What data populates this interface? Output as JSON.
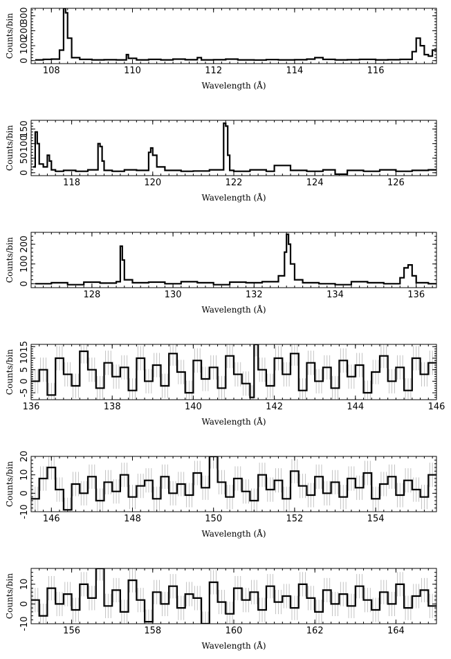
{
  "chart_data": [
    {
      "type": "line",
      "step": true,
      "xlabel": "Wavelength (Å)",
      "ylabel": "Counts/bin",
      "xlim": [
        107.5,
        117.5
      ],
      "ylim": [
        -20,
        350
      ],
      "xticks": [
        108,
        110,
        112,
        114,
        116
      ],
      "yticks": [
        0,
        100,
        200,
        300
      ],
      "x": [
        107.6,
        107.8,
        108.0,
        108.2,
        108.3,
        108.35,
        108.4,
        108.5,
        108.7,
        109.0,
        109.3,
        109.6,
        109.85,
        109.9,
        110.1,
        110.4,
        110.7,
        111.0,
        111.3,
        111.6,
        111.7,
        112.0,
        112.3,
        112.6,
        113.0,
        113.3,
        113.6,
        114.0,
        114.3,
        114.5,
        114.7,
        115.0,
        115.3,
        115.6,
        116.0,
        116.3,
        116.6,
        116.9,
        117.0,
        117.1,
        117.2,
        117.3,
        117.4
      ],
      "y": [
        5,
        8,
        10,
        70,
        350,
        320,
        150,
        20,
        8,
        5,
        6,
        5,
        40,
        15,
        5,
        8,
        5,
        10,
        6,
        20,
        5,
        6,
        10,
        5,
        4,
        7,
        5,
        6,
        10,
        20,
        8,
        5,
        6,
        8,
        5,
        6,
        8,
        60,
        150,
        100,
        40,
        30,
        70
      ],
      "error_bars": false
    },
    {
      "type": "line",
      "step": true,
      "xlabel": "Wavelength (Å)",
      "ylabel": "Counts/bin",
      "xlim": [
        117.0,
        127.0
      ],
      "ylim": [
        -10,
        180
      ],
      "xticks": [
        118,
        120,
        122,
        124,
        126
      ],
      "yticks": [
        0,
        50,
        100,
        150
      ],
      "x": [
        117.05,
        117.1,
        117.15,
        117.2,
        117.3,
        117.4,
        117.45,
        117.5,
        117.6,
        117.8,
        118.1,
        118.4,
        118.65,
        118.7,
        118.75,
        118.8,
        119.0,
        119.3,
        119.6,
        119.9,
        119.95,
        120.0,
        120.1,
        120.3,
        120.7,
        121.0,
        121.4,
        121.75,
        121.8,
        121.85,
        121.9,
        122.0,
        122.4,
        122.8,
        123.0,
        123.4,
        123.8,
        124.2,
        124.5,
        124.8,
        125.2,
        125.6,
        126.0,
        126.4,
        126.8
      ],
      "y": [
        20,
        140,
        100,
        30,
        20,
        60,
        40,
        10,
        5,
        8,
        5,
        10,
        100,
        90,
        40,
        8,
        5,
        10,
        8,
        70,
        85,
        60,
        20,
        8,
        5,
        6,
        10,
        170,
        160,
        60,
        8,
        5,
        10,
        5,
        25,
        8,
        5,
        10,
        -5,
        8,
        5,
        10,
        5,
        8,
        10
      ],
      "error_bars": false
    },
    {
      "type": "line",
      "step": true,
      "xlabel": "Wavelength (Å)",
      "ylabel": "Counts/bin",
      "xlim": [
        126.5,
        136.5
      ],
      "ylim": [
        -20,
        260
      ],
      "xticks": [
        128,
        130,
        132,
        134,
        136
      ],
      "yticks": [
        0,
        100,
        200
      ],
      "x": [
        126.6,
        127.0,
        127.4,
        127.8,
        128.2,
        128.6,
        128.7,
        128.75,
        128.8,
        129.0,
        129.4,
        129.8,
        130.2,
        130.6,
        131.0,
        131.4,
        131.8,
        132.2,
        132.6,
        132.75,
        132.8,
        132.85,
        132.9,
        133.0,
        133.2,
        133.6,
        134.0,
        134.4,
        134.8,
        135.2,
        135.6,
        135.7,
        135.8,
        135.9,
        136.0,
        136.3
      ],
      "y": [
        0,
        5,
        -5,
        8,
        3,
        10,
        190,
        120,
        20,
        5,
        8,
        0,
        10,
        5,
        -5,
        8,
        5,
        10,
        40,
        160,
        250,
        200,
        100,
        20,
        5,
        0,
        -5,
        10,
        5,
        0,
        30,
        80,
        95,
        40,
        5,
        0
      ],
      "error_bars": false
    },
    {
      "type": "line",
      "step": true,
      "xlabel": "Wavelength (Å)",
      "ylabel": "Counts/bin",
      "xlim": [
        136,
        146
      ],
      "ylim": [
        -8,
        16
      ],
      "xticks": [
        136,
        138,
        140,
        142,
        144,
        146
      ],
      "yticks": [
        -5,
        0,
        5,
        10,
        15
      ],
      "x": [
        136.0,
        136.2,
        136.4,
        136.6,
        136.8,
        137.0,
        137.2,
        137.4,
        137.6,
        137.8,
        138.0,
        138.2,
        138.4,
        138.6,
        138.8,
        139.0,
        139.2,
        139.4,
        139.6,
        139.8,
        140.0,
        140.2,
        140.4,
        140.6,
        140.8,
        141.0,
        141.2,
        141.4,
        141.5,
        141.6,
        141.8,
        142.0,
        142.2,
        142.4,
        142.6,
        142.8,
        143.0,
        143.2,
        143.4,
        143.6,
        143.8,
        144.0,
        144.2,
        144.4,
        144.6,
        144.8,
        145.0,
        145.2,
        145.4,
        145.6,
        145.8
      ],
      "y": [
        0,
        5,
        -6,
        10,
        3,
        -2,
        13,
        5,
        -3,
        8,
        2,
        6,
        -4,
        10,
        0,
        7,
        -2,
        12,
        4,
        -5,
        9,
        1,
        6,
        -3,
        11,
        3,
        -1,
        -7,
        16,
        5,
        -2,
        10,
        3,
        12,
        -4,
        8,
        0,
        6,
        -3,
        9,
        2,
        7,
        -5,
        4,
        11,
        0,
        6,
        -4,
        10,
        3,
        8
      ],
      "error_bars": true
    },
    {
      "type": "line",
      "step": true,
      "xlabel": "Wavelength (Å)",
      "ylabel": "Counts/bin",
      "xlim": [
        145.5,
        155.5
      ],
      "ylim": [
        -10,
        20
      ],
      "xticks": [
        146,
        148,
        150,
        152,
        154
      ],
      "yticks": [
        -10,
        0,
        10,
        20
      ],
      "x": [
        145.5,
        145.7,
        145.9,
        146.1,
        146.3,
        146.5,
        146.7,
        146.9,
        147.1,
        147.3,
        147.5,
        147.7,
        147.9,
        148.1,
        148.3,
        148.5,
        148.7,
        148.9,
        149.1,
        149.3,
        149.5,
        149.7,
        149.9,
        150.1,
        150.3,
        150.5,
        150.7,
        150.9,
        151.1,
        151.3,
        151.5,
        151.7,
        151.9,
        152.1,
        152.3,
        152.5,
        152.7,
        152.9,
        153.1,
        153.3,
        153.5,
        153.7,
        153.9,
        154.1,
        154.3,
        154.5,
        154.7,
        154.9,
        155.1,
        155.3
      ],
      "y": [
        -3,
        8,
        14,
        2,
        -9,
        5,
        0,
        9,
        -4,
        6,
        1,
        10,
        -2,
        4,
        7,
        -3,
        9,
        0,
        5,
        -1,
        11,
        3,
        20,
        6,
        -2,
        8,
        1,
        -4,
        10,
        2,
        7,
        -3,
        12,
        4,
        -1,
        9,
        0,
        6,
        -2,
        8,
        3,
        11,
        -3,
        5,
        9,
        -1,
        7,
        2,
        -2,
        10
      ],
      "error_bars": true
    },
    {
      "type": "line",
      "step": true,
      "xlabel": "Wavelength (Å)",
      "ylabel": "Counts/bin",
      "xlim": [
        155,
        165
      ],
      "ylim": [
        -10,
        18
      ],
      "xticks": [
        156,
        158,
        160,
        162,
        164
      ],
      "yticks": [
        -10,
        0,
        10
      ],
      "x": [
        155.0,
        155.2,
        155.4,
        155.6,
        155.8,
        156.0,
        156.2,
        156.4,
        156.6,
        156.8,
        157.0,
        157.2,
        157.4,
        157.6,
        157.8,
        158.0,
        158.2,
        158.4,
        158.6,
        158.8,
        159.0,
        159.2,
        159.4,
        159.6,
        159.8,
        160.0,
        160.2,
        160.4,
        160.6,
        160.8,
        161.0,
        161.2,
        161.4,
        161.6,
        161.8,
        162.0,
        162.2,
        162.4,
        162.6,
        162.8,
        163.0,
        163.2,
        163.4,
        163.6,
        163.8,
        164.0,
        164.2,
        164.4,
        164.6,
        164.8
      ],
      "y": [
        2,
        -6,
        8,
        0,
        5,
        -3,
        10,
        3,
        18,
        -1,
        7,
        -4,
        12,
        2,
        -9,
        6,
        0,
        9,
        -2,
        5,
        3,
        -10,
        11,
        1,
        -5,
        8,
        2,
        6,
        -3,
        9,
        1,
        4,
        -2,
        10,
        3,
        -4,
        7,
        0,
        5,
        -1,
        9,
        2,
        -3,
        6,
        0,
        10,
        -2,
        4,
        7,
        -1
      ],
      "error_bars": true
    }
  ]
}
